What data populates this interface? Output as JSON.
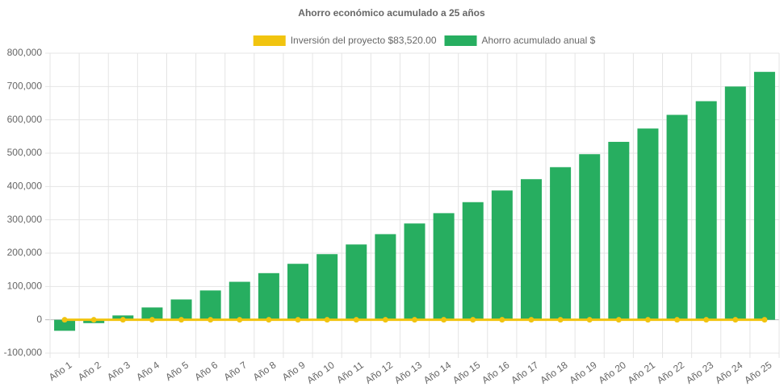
{
  "chart_data": {
    "type": "bar",
    "title": "Ahorro económico acumulado a 25 años",
    "legend": "top",
    "grid": true,
    "categories": [
      "Año 1",
      "Año 2",
      "Año 3",
      "Año 4",
      "Año 5",
      "Año 6",
      "Año 7",
      "Año 8",
      "Año 9",
      "Año 10",
      "Año 11",
      "Año 12",
      "Año 13",
      "Año 14",
      "Año 15",
      "Año 16",
      "Año 17",
      "Año 18",
      "Año 19",
      "Año 20",
      "Año 21",
      "Año 22",
      "Año 23",
      "Año 24",
      "Año 25"
    ],
    "series": [
      {
        "name": "Inversión del proyecto $83,520.00",
        "type": "line",
        "color": "#f1c40f",
        "values": [
          0,
          0,
          0,
          0,
          0,
          0,
          0,
          0,
          0,
          0,
          0,
          0,
          0,
          0,
          0,
          0,
          0,
          0,
          0,
          0,
          0,
          0,
          0,
          0,
          0
        ]
      },
      {
        "name": "Ahorro acumulado anual $",
        "type": "bar",
        "color": "#27ae60",
        "values": [
          -33000,
          -10000,
          13000,
          37000,
          61000,
          88000,
          114000,
          140000,
          168000,
          197000,
          226000,
          257000,
          289000,
          320000,
          353000,
          388000,
          422000,
          458000,
          497000,
          534000,
          574000,
          615000,
          656000,
          700000,
          744000
        ]
      }
    ],
    "ylim": [
      -100000,
      800000
    ],
    "yticks": [
      {
        "value": -100000,
        "label": "-100,000"
      },
      0,
      {
        "value": 100000,
        "label": "100,000"
      },
      {
        "value": 200000,
        "label": "200,000"
      },
      {
        "value": 300000,
        "label": "300,000"
      },
      {
        "value": 400000,
        "label": "400,000"
      },
      {
        "value": 500000,
        "label": "500,000"
      },
      {
        "value": 600000,
        "label": "600,000"
      },
      {
        "value": 700000,
        "label": "700,000"
      },
      {
        "value": 800000,
        "label": "800,000"
      }
    ]
  }
}
